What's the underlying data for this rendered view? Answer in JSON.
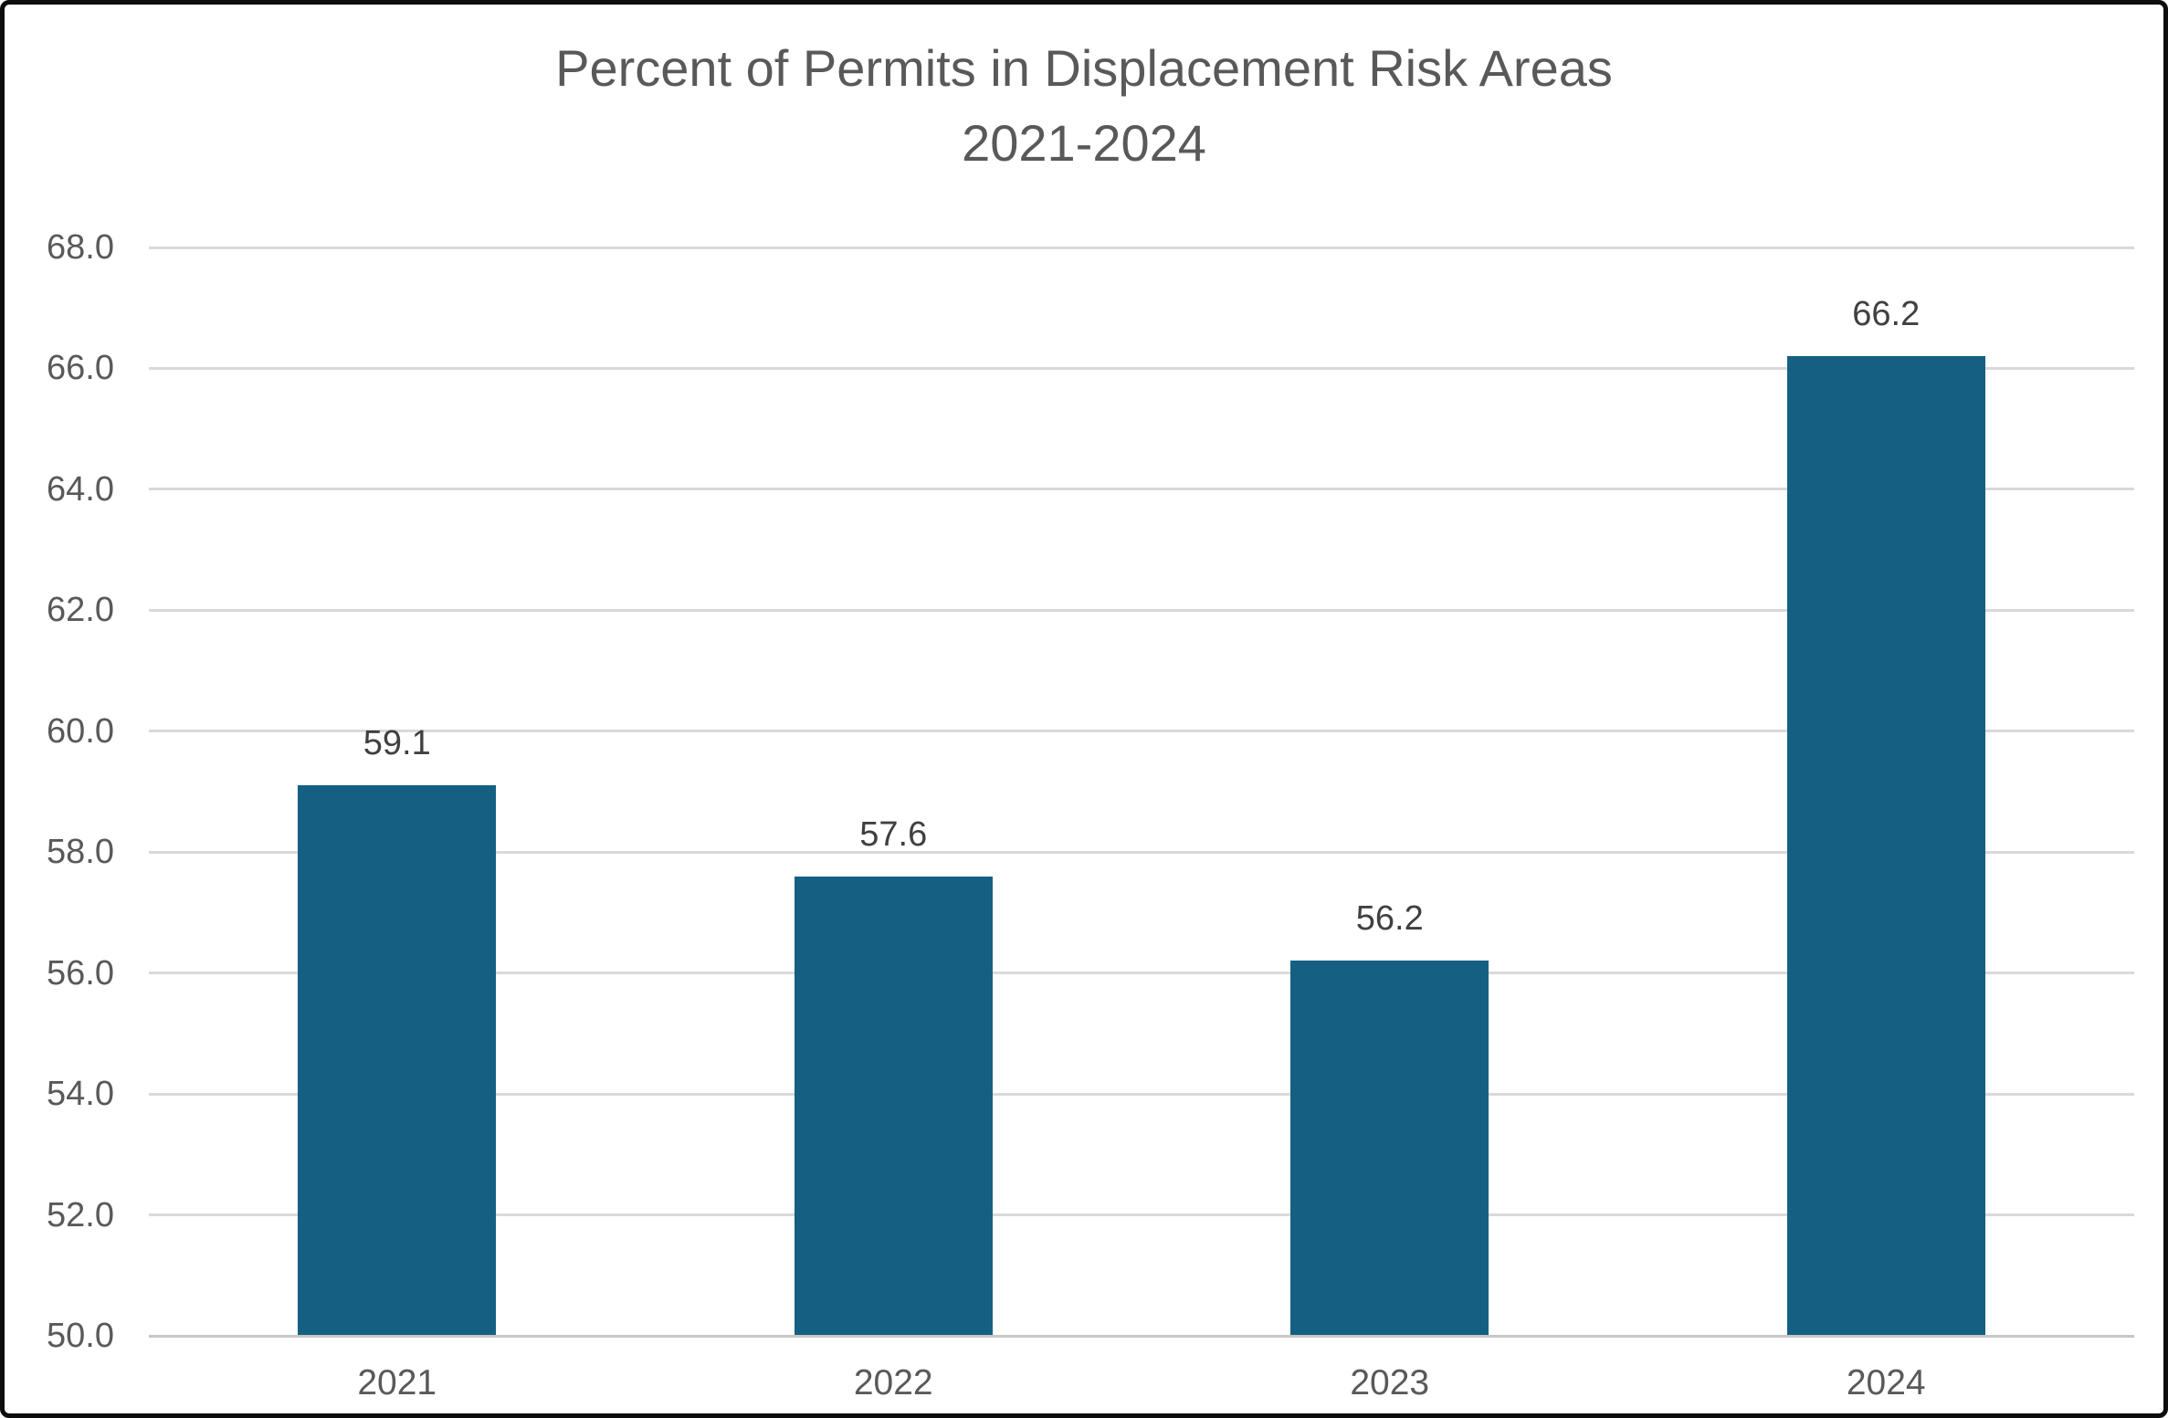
{
  "chart_data": {
    "type": "bar",
    "title": "Percent of Permits in Displacement Risk Areas",
    "subtitle": "2021-2024",
    "categories": [
      "2021",
      "2022",
      "2023",
      "2024"
    ],
    "values": [
      59.1,
      57.6,
      56.2,
      66.2
    ],
    "data_labels": [
      "59.1",
      "57.6",
      "56.2",
      "66.2"
    ],
    "xlabel": "",
    "ylabel": "",
    "ylim": [
      50,
      68
    ],
    "ytick_step": 2,
    "ytick_labels": [
      "50.0",
      "52.0",
      "54.0",
      "56.0",
      "58.0",
      "60.0",
      "62.0",
      "64.0",
      "66.0",
      "68.0"
    ],
    "grid": true,
    "legend": false,
    "colors": {
      "bar": "#156082",
      "gridline": "#d9d9d9",
      "axis_line": "#c6c6c6",
      "title_text": "#595959",
      "tick_text": "#595959",
      "data_label_text": "#404040",
      "background": "#ffffff",
      "frame_border": "#0d0d0d"
    }
  }
}
